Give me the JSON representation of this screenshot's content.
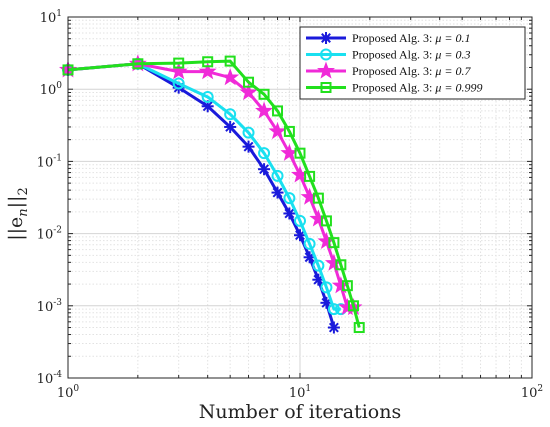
{
  "chart_data": {
    "type": "line",
    "xscale": "log",
    "yscale": "log",
    "xlim": [
      1,
      100
    ],
    "ylim": [
      0.0001,
      10
    ],
    "grid": true,
    "grid_minor": true,
    "legend_placement": "top-right",
    "xlabel": "Number of iterations",
    "ylabel": "||e_n||_2",
    "ylabel_parts": {
      "main": "||e",
      "sub_n": "n",
      "close": "||",
      "sub_2": "2"
    },
    "x_ticks": [
      {
        "base": "10",
        "exp": "0",
        "value": 1
      },
      {
        "base": "10",
        "exp": "1",
        "value": 10
      },
      {
        "base": "10",
        "exp": "2",
        "value": 100
      }
    ],
    "y_ticks": [
      {
        "base": "10",
        "exp": "-4",
        "value": 0.0001
      },
      {
        "base": "10",
        "exp": "-3",
        "value": 0.001
      },
      {
        "base": "10",
        "exp": "-2",
        "value": 0.01
      },
      {
        "base": "10",
        "exp": "-1",
        "value": 0.1
      },
      {
        "base": "10",
        "exp": "0",
        "value": 1
      },
      {
        "base": "10",
        "exp": "1",
        "value": 10
      }
    ],
    "series": [
      {
        "name": "Proposed Alg. 3: μ = 0.1",
        "label_prefix": "Proposed Alg. 3: ",
        "label_mu": "μ = 0.1",
        "color": "#1a1adb",
        "marker": "asterisk",
        "x": [
          1,
          2,
          3,
          4,
          5,
          6,
          7,
          8,
          9,
          10,
          11,
          12,
          13,
          14
        ],
        "y": [
          1.85,
          2.25,
          1.05,
          0.58,
          0.3,
          0.16,
          0.078,
          0.037,
          0.019,
          0.0095,
          0.0047,
          0.0023,
          0.0011,
          0.0005
        ]
      },
      {
        "name": "Proposed Alg. 3: μ = 0.3",
        "label_prefix": "Proposed Alg. 3: ",
        "label_mu": "μ = 0.3",
        "color": "#19e0f0",
        "marker": "circle",
        "x": [
          1,
          2,
          3,
          4,
          5,
          6,
          7,
          8,
          9,
          10,
          11,
          12,
          13,
          14,
          15
        ],
        "y": [
          1.85,
          2.25,
          1.2,
          0.78,
          0.45,
          0.25,
          0.13,
          0.063,
          0.031,
          0.015,
          0.0072,
          0.0036,
          0.0018,
          0.0009,
          0.0009
        ]
      },
      {
        "name": "Proposed Alg. 3: μ = 0.7",
        "label_prefix": "Proposed Alg. 3: ",
        "label_mu": "μ = 0.7",
        "color": "#f02ad8",
        "marker": "star",
        "x": [
          1,
          2,
          3,
          4,
          5,
          6,
          7,
          8,
          9,
          10,
          11,
          12,
          13,
          14,
          15,
          16,
          17
        ],
        "y": [
          1.85,
          2.25,
          1.75,
          1.75,
          1.45,
          0.9,
          0.5,
          0.26,
          0.13,
          0.065,
          0.032,
          0.016,
          0.0078,
          0.0039,
          0.0019,
          0.00095,
          0.00095
        ]
      },
      {
        "name": "Proposed Alg. 3: μ = 0.999",
        "label_prefix": "Proposed Alg. 3: ",
        "label_mu": "μ = 0.999",
        "color": "#22e01d",
        "marker": "square",
        "x": [
          1,
          2,
          3,
          4,
          5,
          6,
          7,
          8,
          9,
          10,
          11,
          12,
          13,
          14,
          15,
          16,
          17,
          18
        ],
        "y": [
          1.85,
          2.25,
          2.3,
          2.4,
          2.45,
          1.25,
          0.85,
          0.5,
          0.26,
          0.13,
          0.062,
          0.031,
          0.015,
          0.0075,
          0.0037,
          0.0019,
          0.001,
          0.0005
        ]
      }
    ]
  }
}
